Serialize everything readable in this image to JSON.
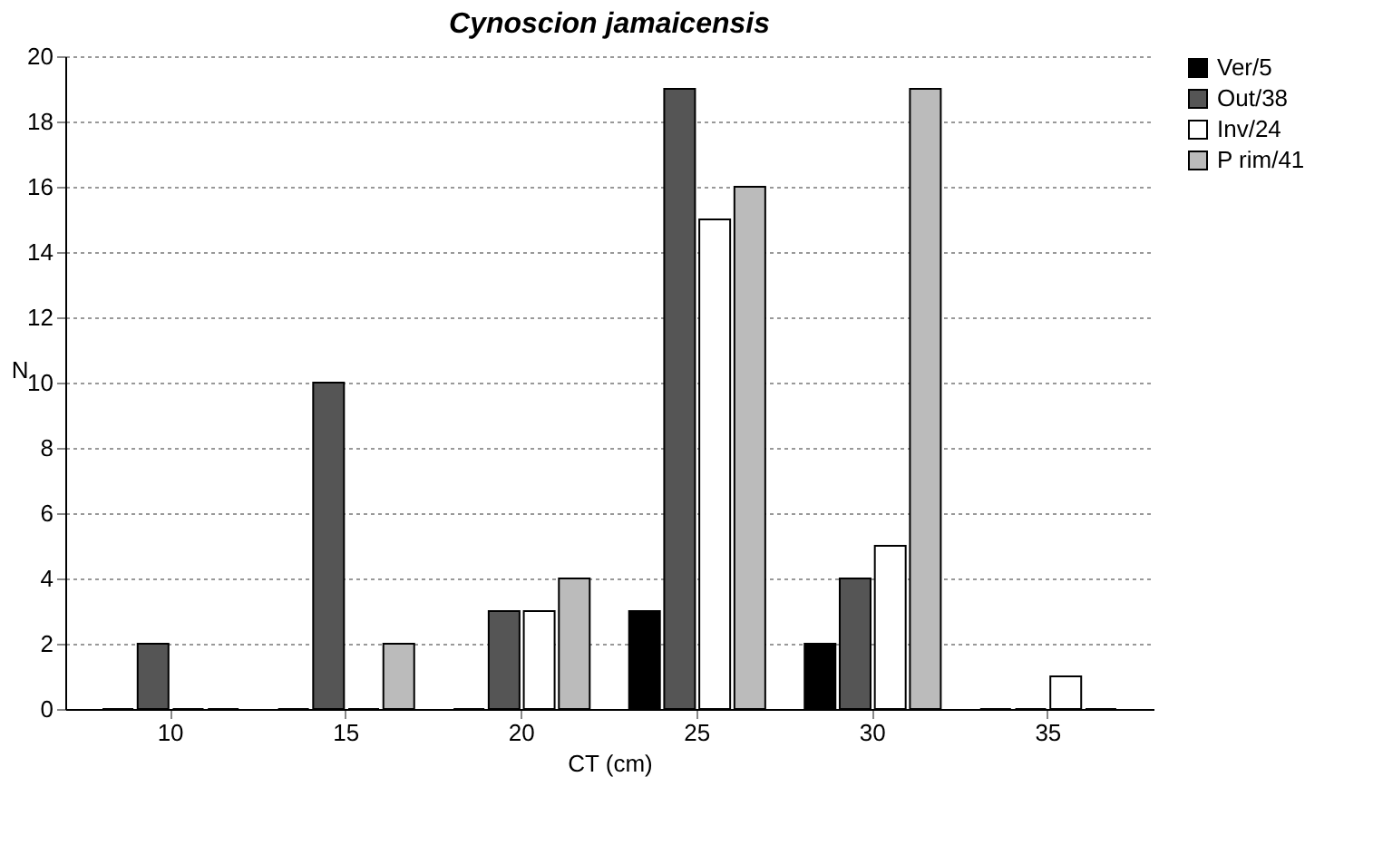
{
  "chart_data": {
    "type": "bar",
    "title": "Cynoscion jamaicensis",
    "xlabel": "CT (cm)",
    "ylabel": "N",
    "categories": [
      "10",
      "15",
      "20",
      "25",
      "30",
      "35"
    ],
    "series": [
      {
        "name": "Ver/5",
        "color": "#000000",
        "values": [
          0,
          0,
          0,
          3,
          2,
          0
        ]
      },
      {
        "name": "Out/38",
        "color": "#555555",
        "values": [
          2,
          10,
          3,
          19,
          4,
          0
        ]
      },
      {
        "name": "Inv/24",
        "color": "#ffffff",
        "values": [
          0,
          0,
          3,
          15,
          5,
          1
        ]
      },
      {
        "name": "P rim/41",
        "color": "#bbbbbb",
        "values": [
          0,
          2,
          4,
          16,
          19,
          0
        ]
      }
    ],
    "ylim": [
      0,
      20
    ],
    "yticks": [
      0,
      2,
      4,
      6,
      8,
      10,
      12,
      14,
      16,
      18,
      20
    ],
    "grid": "y",
    "legend": "top right"
  }
}
